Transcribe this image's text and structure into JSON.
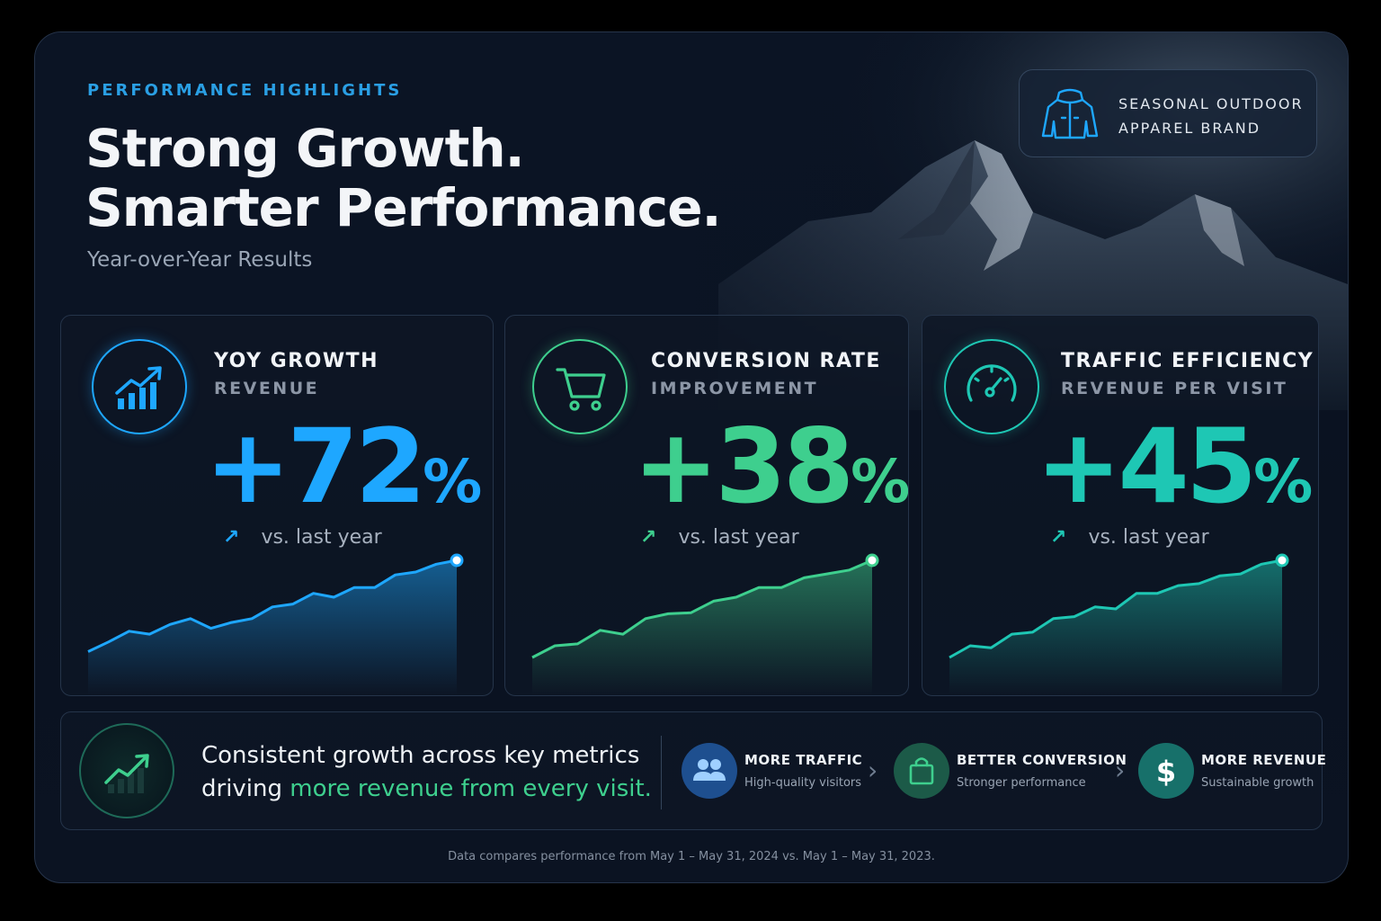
{
  "header": {
    "eyebrow": "PERFORMANCE HIGHLIGHTS",
    "headline_line1": "Strong Growth.",
    "headline_line2": "Smarter Performance.",
    "subhead": "Year-over-Year Results"
  },
  "brand": {
    "line1": "SEASONAL OUTDOOR",
    "line2": "APPAREL BRAND",
    "icon": "jacket-icon"
  },
  "cards": [
    {
      "title": "YOY GROWTH",
      "subtitle": "REVENUE",
      "value": "+72",
      "unit": "%",
      "comparison": "vs. last year",
      "trend_icon": "arrow-up-right-icon",
      "icon": "bar-chart-up-icon",
      "accent": "#1ea7ff",
      "trend": [
        0.06,
        0.16,
        0.27,
        0.24,
        0.34,
        0.4,
        0.3,
        0.36,
        0.4,
        0.52,
        0.55,
        0.66,
        0.62,
        0.72,
        0.72,
        0.85,
        0.88,
        0.96,
        1.0
      ]
    },
    {
      "title": "CONVERSION RATE",
      "subtitle": "IMPROVEMENT",
      "value": "+38",
      "unit": "%",
      "comparison": "vs. last year",
      "trend_icon": "arrow-up-right-icon",
      "icon": "shopping-cart-icon",
      "accent": "#3ecf8e",
      "trend": [
        0.0,
        0.12,
        0.14,
        0.28,
        0.24,
        0.4,
        0.45,
        0.46,
        0.58,
        0.62,
        0.72,
        0.72,
        0.82,
        0.86,
        0.9,
        1.0
      ]
    },
    {
      "title": "TRAFFIC EFFICIENCY",
      "subtitle": "REVENUE PER VISIT",
      "value": "+45",
      "unit": "%",
      "comparison": "vs. last year",
      "trend_icon": "arrow-up-right-icon",
      "icon": "speedometer-icon",
      "accent": "#1ec7b4",
      "trend": [
        0.0,
        0.12,
        0.1,
        0.24,
        0.26,
        0.4,
        0.42,
        0.52,
        0.5,
        0.66,
        0.66,
        0.74,
        0.76,
        0.84,
        0.86,
        0.96,
        1.0
      ]
    }
  ],
  "summary": {
    "icon": "growth-chart-icon",
    "line1": "Consistent growth across key metrics",
    "line2_prefix": "driving ",
    "line2_highlight": "more revenue from every visit.",
    "steps": [
      {
        "title": "MORE TRAFFIC",
        "desc": "High-quality visitors",
        "icon": "users-icon",
        "color": "#1e4f8f"
      },
      {
        "title": "BETTER CONVERSION",
        "desc": "Stronger performance",
        "icon": "shopping-bag-icon",
        "color": "#1c5a48"
      },
      {
        "title": "MORE REVENUE",
        "desc": "Sustainable growth",
        "icon": "dollar-icon",
        "color": "#17706a"
      }
    ]
  },
  "footnote": "Data compares performance from May 1 – May 31, 2024 vs. May 1 – May 31, 2023."
}
